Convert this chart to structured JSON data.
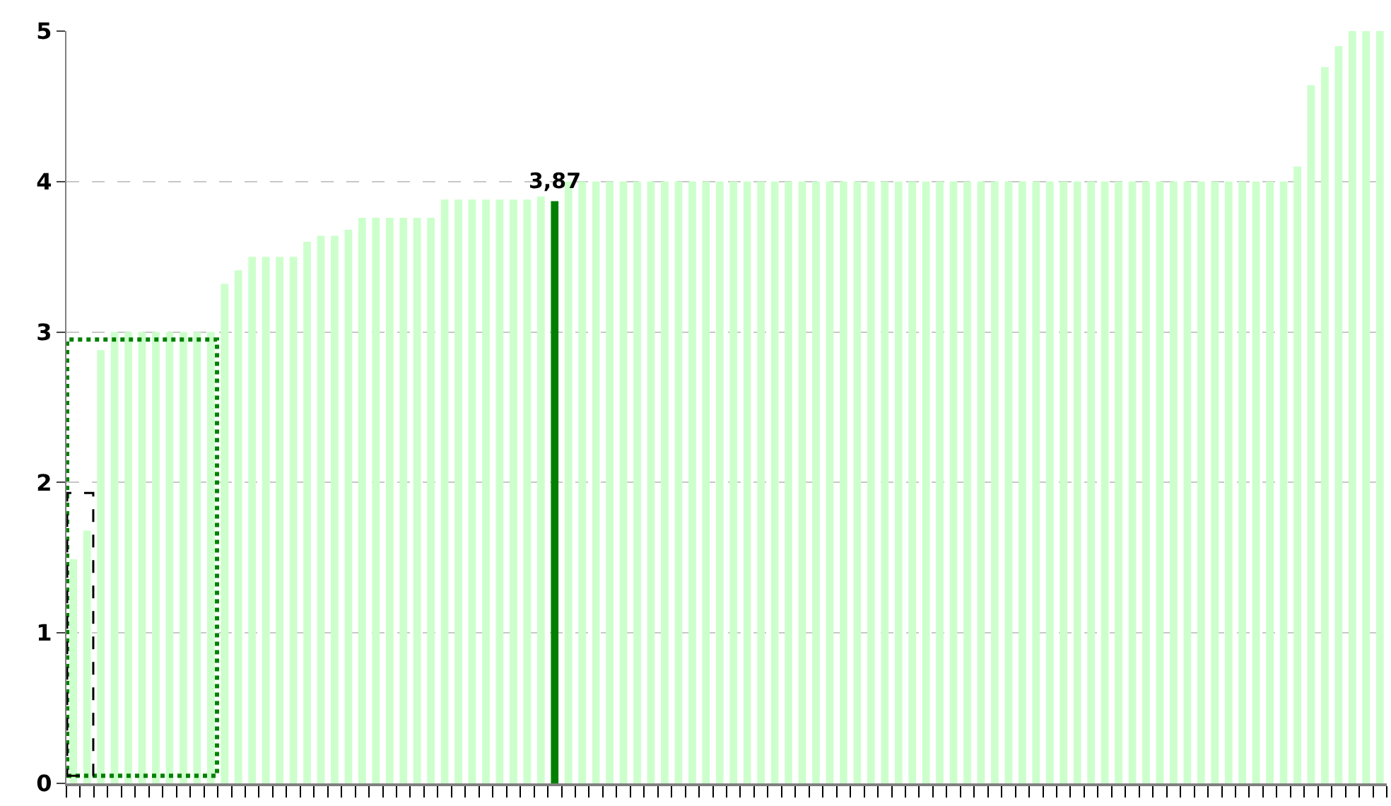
{
  "chart_data": {
    "type": "bar",
    "categories": [
      null,
      null,
      null,
      null,
      null,
      null,
      null,
      null,
      null,
      null,
      null,
      null,
      null,
      null,
      null,
      null,
      null,
      null,
      null,
      null,
      null,
      null,
      null,
      null,
      null,
      null,
      null,
      null,
      null,
      null,
      null,
      null,
      null,
      null,
      null,
      null,
      null,
      null,
      null,
      null,
      null,
      null,
      null,
      null,
      null,
      null,
      null,
      null,
      null,
      null,
      null,
      null,
      null,
      null,
      null,
      null,
      null,
      null,
      null,
      null,
      null,
      null,
      null,
      null,
      null,
      null,
      null,
      null,
      null,
      null,
      null,
      null,
      null,
      null,
      null,
      null,
      null,
      null,
      null,
      null,
      null,
      null,
      null,
      null,
      null,
      null,
      null,
      null,
      null,
      null,
      null,
      null,
      null,
      null,
      null,
      null
    ],
    "values": [
      1.49,
      1.68,
      2.88,
      3.0,
      3.0,
      3.0,
      3.0,
      3.0,
      3.0,
      3.0,
      3.0,
      3.32,
      3.41,
      3.5,
      3.5,
      3.5,
      3.5,
      3.6,
      3.64,
      3.64,
      3.68,
      3.76,
      3.76,
      3.76,
      3.76,
      3.76,
      3.76,
      3.88,
      3.88,
      3.88,
      3.88,
      3.88,
      3.88,
      3.88,
      3.9,
      3.87,
      4.0,
      4.0,
      4.0,
      4.0,
      4.0,
      4.0,
      4.0,
      4.0,
      4.0,
      4.0,
      4.0,
      4.0,
      4.0,
      4.0,
      4.0,
      4.0,
      4.0,
      4.0,
      4.0,
      4.0,
      4.0,
      4.0,
      4.0,
      4.0,
      4.0,
      4.0,
      4.0,
      4.0,
      4.0,
      4.0,
      4.0,
      4.0,
      4.0,
      4.0,
      4.0,
      4.0,
      4.0,
      4.0,
      4.0,
      4.0,
      4.0,
      4.0,
      4.0,
      4.0,
      4.0,
      4.0,
      4.0,
      4.0,
      4.0,
      4.0,
      4.0,
      4.0,
      4.0,
      4.1,
      4.64,
      4.76,
      4.9,
      5.0,
      5.0,
      5.0
    ],
    "colors": [
      "#ccffcc",
      "#ccffcc",
      "#ccffcc",
      "#ccffcc",
      "#ccffcc",
      "#ccffcc",
      "#ccffcc",
      "#ccffcc",
      "#ccffcc",
      "#ccffcc",
      "#ccffcc",
      "#ccffcc",
      "#ccffcc",
      "#ccffcc",
      "#ccffcc",
      "#ccffcc",
      "#ccffcc",
      "#ccffcc",
      "#ccffcc",
      "#ccffcc",
      "#ccffcc",
      "#ccffcc",
      "#ccffcc",
      "#ccffcc",
      "#ccffcc",
      "#ccffcc",
      "#ccffcc",
      "#ccffcc",
      "#ccffcc",
      "#ccffcc",
      "#ccffcc",
      "#ccffcc",
      "#ccffcc",
      "#ccffcc",
      "#ccffcc",
      "#008000",
      "#ccffcc",
      "#ccffcc",
      "#ccffcc",
      "#ccffcc",
      "#ccffcc",
      "#ccffcc",
      "#ccffcc",
      "#ccffcc",
      "#ccffcc",
      "#ccffcc",
      "#ccffcc",
      "#ccffcc",
      "#ccffcc",
      "#ccffcc",
      "#ccffcc",
      "#ccffcc",
      "#ccffcc",
      "#ccffcc",
      "#ccffcc",
      "#ccffcc",
      "#ccffcc",
      "#ccffcc",
      "#ccffcc",
      "#ccffcc",
      "#ccffcc",
      "#ccffcc",
      "#ccffcc",
      "#ccffcc",
      "#ccffcc",
      "#ccffcc",
      "#ccffcc",
      "#ccffcc",
      "#ccffcc",
      "#ccffcc",
      "#ccffcc",
      "#ccffcc",
      "#ccffcc",
      "#ccffcc",
      "#ccffcc",
      "#ccffcc",
      "#ccffcc",
      "#ccffcc",
      "#ccffcc",
      "#ccffcc",
      "#ccffcc",
      "#ccffcc",
      "#ccffcc",
      "#ccffcc",
      "#ccffcc",
      "#ccffcc",
      "#ccffcc",
      "#ccffcc",
      "#ccffcc",
      "#ccffcc",
      "#ccffcc",
      "#ccffcc",
      "#ccffcc",
      "#ccffcc",
      "#ccffcc",
      "#ccffcc"
    ],
    "value_labels": [
      null,
      null,
      null,
      null,
      null,
      null,
      null,
      null,
      null,
      null,
      null,
      null,
      null,
      null,
      null,
      null,
      null,
      null,
      null,
      null,
      null,
      null,
      null,
      null,
      null,
      null,
      null,
      null,
      null,
      null,
      null,
      null,
      null,
      null,
      null,
      "3,87",
      null,
      null,
      null,
      null,
      null,
      null,
      null,
      null,
      null,
      null,
      null,
      null,
      null,
      null,
      null,
      null,
      null,
      null,
      null,
      null,
      null,
      null,
      null,
      null,
      null,
      null,
      null,
      null,
      null,
      null,
      null,
      null,
      null,
      null,
      null,
      null,
      null,
      null,
      null,
      null,
      null,
      null,
      null,
      null,
      null,
      null,
      null,
      null,
      null,
      null,
      null,
      null,
      null,
      null,
      null,
      null,
      null,
      null,
      null,
      null
    ],
    "ylim": [
      0,
      5
    ],
    "yticks": [
      0,
      1,
      2,
      3,
      4,
      5
    ],
    "grid": "y",
    "tick_labels": "y"
  }
}
